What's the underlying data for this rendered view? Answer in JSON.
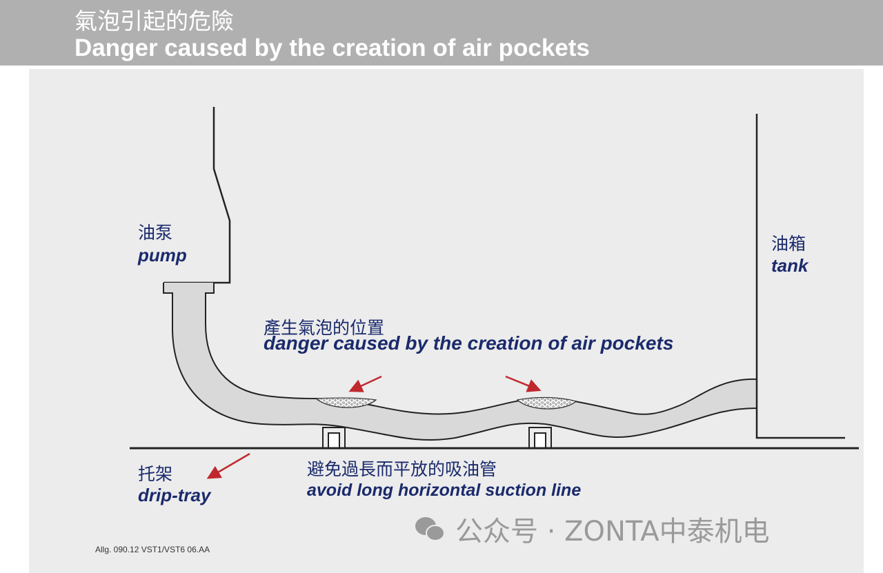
{
  "header": {
    "title_cn": "氣泡引起的危險",
    "title_en": "Danger caused by the creation of air pockets"
  },
  "labels": {
    "pump_cn": "油泵",
    "pump_en": "pump",
    "tank_cn": "油箱",
    "tank_en": "tank",
    "pockets_cn": "產生氣泡的位置",
    "pockets_en": "danger caused by the creation of air pockets",
    "tray_cn": "托架",
    "tray_en": "drip-tray",
    "line_cn": "避免過長而平放的吸油管",
    "line_en": "avoid long horizontal suction line"
  },
  "reference": "Allg. 090.12 VST1/VST6 06.AA",
  "watermark": "公众号 · ZONTA中泰机电",
  "colors": {
    "header": "#b0b0b0",
    "panel": "#ececec",
    "label": "#1a2a6c",
    "arrow": "#c0282d",
    "pipe": "#d9d9d9"
  }
}
